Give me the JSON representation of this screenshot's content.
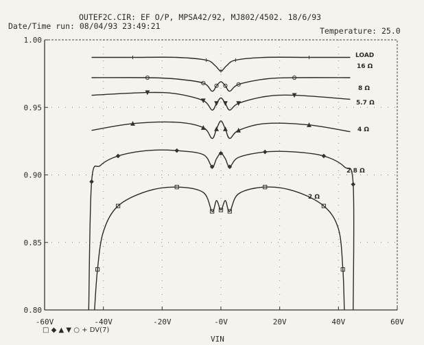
{
  "header": {
    "title": "OUTEF2C.CIR:  EF O/P, MPSA42/92, MJ802/4502. 18/6/93",
    "datetime": "Date/Time run: 08/04/93  23:49:21",
    "temperature": "Temperature: 25.0"
  },
  "legend": {
    "markers": "□ ◆ ▲ ▼ ○ + DV(7)"
  },
  "chart_data": {
    "type": "line",
    "title": "OUTEF2C.CIR:  EF O/P, MPSA42/92, MJ802/4502. 18/6/93",
    "xlabel": "VIN",
    "ylabel": "",
    "xlim": [
      -60,
      60
    ],
    "ylim": [
      0.8,
      1.0
    ],
    "x_ticks": [
      "-60V",
      "-40V",
      "-20V",
      "-0V",
      "20V",
      "40V",
      "60V"
    ],
    "y_ticks": [
      "0.80",
      "0.85",
      "0.90",
      "0.95",
      "1.00"
    ],
    "grid": "dotted",
    "legend_title": "LOAD",
    "series": [
      {
        "name": "16 Ω",
        "marker": "+",
        "x": [
          -44,
          -30,
          -15,
          -5,
          -2,
          0,
          2,
          5,
          15,
          30,
          44
        ],
        "y": [
          0.987,
          0.987,
          0.987,
          0.985,
          0.981,
          0.977,
          0.981,
          0.985,
          0.987,
          0.987,
          0.987
        ]
      },
      {
        "name": "8 Ω",
        "marker": "○",
        "x": [
          -44,
          -25,
          -15,
          -6,
          -3,
          -1.5,
          0,
          1.5,
          3,
          6,
          15,
          25,
          44
        ],
        "y": [
          0.972,
          0.972,
          0.971,
          0.968,
          0.962,
          0.966,
          0.969,
          0.966,
          0.962,
          0.967,
          0.971,
          0.972,
          0.972
        ]
      },
      {
        "name": "5.7 Ω",
        "marker": "▼",
        "x": [
          -44,
          -25,
          -15,
          -6,
          -3,
          -1.5,
          0,
          1.5,
          3,
          6,
          15,
          25,
          44
        ],
        "y": [
          0.959,
          0.961,
          0.96,
          0.955,
          0.948,
          0.953,
          0.957,
          0.953,
          0.948,
          0.953,
          0.958,
          0.959,
          0.956
        ]
      },
      {
        "name": "4 Ω",
        "marker": "▲",
        "x": [
          -44,
          -30,
          -15,
          -6,
          -3,
          -1.5,
          0,
          1.5,
          3,
          6,
          15,
          30,
          44
        ],
        "y": [
          0.933,
          0.938,
          0.939,
          0.935,
          0.927,
          0.934,
          0.94,
          0.934,
          0.927,
          0.933,
          0.938,
          0.937,
          0.932
        ]
      },
      {
        "name": "2.8 Ω",
        "marker": "◆",
        "x": [
          -45,
          -44,
          -41,
          -35,
          -25,
          -15,
          -6,
          -3,
          -1.5,
          0,
          1.5,
          3,
          6,
          15,
          25,
          35,
          42,
          45,
          45
        ],
        "y": [
          0.8,
          0.895,
          0.907,
          0.914,
          0.918,
          0.918,
          0.915,
          0.906,
          0.912,
          0.916,
          0.912,
          0.906,
          0.913,
          0.917,
          0.917,
          0.914,
          0.906,
          0.893,
          0.8
        ]
      },
      {
        "name": "2 Ω",
        "marker": "□",
        "x": [
          -43,
          -42,
          -40,
          -35,
          -25,
          -15,
          -6,
          -3,
          -1.5,
          0,
          1.5,
          3,
          6,
          15,
          25,
          35,
          40,
          41.5,
          42
        ],
        "y": [
          0.8,
          0.83,
          0.858,
          0.877,
          0.888,
          0.891,
          0.887,
          0.873,
          0.881,
          0.874,
          0.881,
          0.873,
          0.886,
          0.891,
          0.888,
          0.877,
          0.86,
          0.83,
          0.8
        ]
      }
    ]
  }
}
